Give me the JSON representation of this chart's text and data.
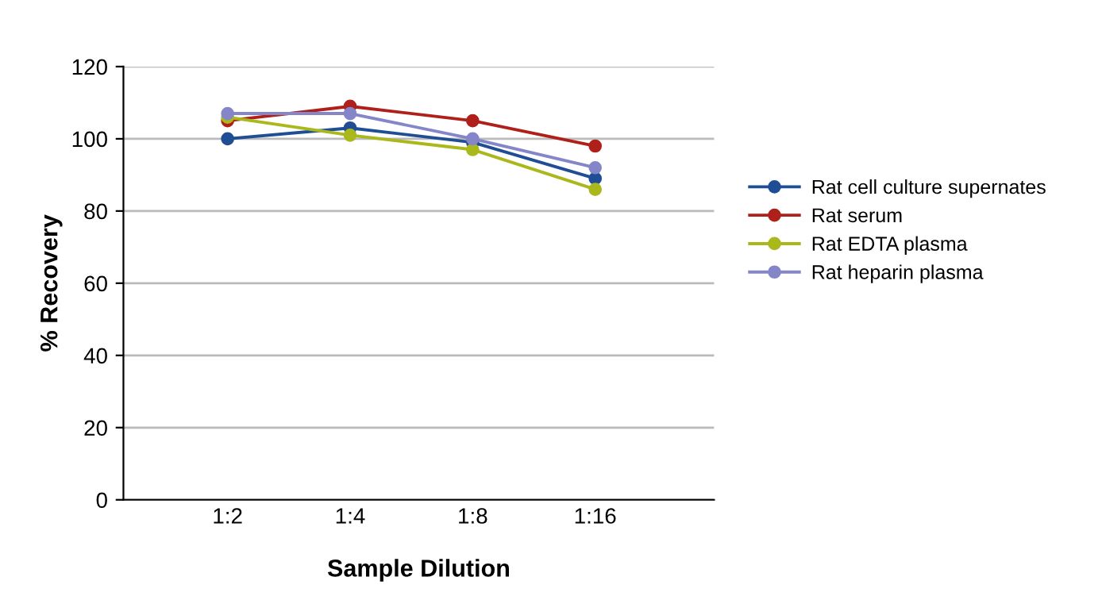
{
  "chart_data": {
    "type": "line",
    "xlabel": "Sample Dilution",
    "ylabel": "% Recovery",
    "categories": [
      "1:2",
      "1:4",
      "1:8",
      "1:16"
    ],
    "series": [
      {
        "name": "Rat cell culture supernates",
        "color": "#1f4e94",
        "values": [
          100,
          103,
          99,
          89
        ]
      },
      {
        "name": "Rat serum",
        "color": "#b0201a",
        "values": [
          105,
          109,
          105,
          98
        ]
      },
      {
        "name": "Rat EDTA plasma",
        "color": "#aab81c",
        "values": [
          106,
          101,
          97,
          86
        ]
      },
      {
        "name": "Rat heparin plasma",
        "color": "#8585c9",
        "values": [
          107,
          107,
          100,
          92
        ]
      }
    ],
    "ylim": [
      0,
      120
    ],
    "yticks": [
      0,
      20,
      40,
      60,
      80,
      100,
      120
    ],
    "grid": "y",
    "legend": "right",
    "marker": "circle",
    "line_style": "solid"
  }
}
